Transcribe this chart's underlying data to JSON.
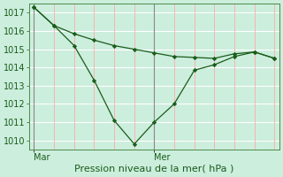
{
  "background_color": "#cceedd",
  "grid_color_h": "#ffffff",
  "grid_color_v": "#ffaaaa",
  "line_color": "#1a5c1a",
  "marker_color": "#1a5c1a",
  "xlabel": "Pression niveau de la mer( hPa )",
  "ylim": [
    1009.5,
    1017.5
  ],
  "yticks": [
    1010,
    1011,
    1012,
    1013,
    1014,
    1015,
    1016,
    1017
  ],
  "xtick_labels": [
    "Mar",
    "Mer"
  ],
  "vline_x": [
    0.0,
    0.5
  ],
  "line1_x": [
    0.0,
    0.083,
    0.167,
    0.25,
    0.333,
    0.417,
    0.5,
    0.583,
    0.667,
    0.75,
    0.833,
    0.917,
    1.0
  ],
  "line1_y": [
    1017.3,
    1016.3,
    1015.85,
    1015.5,
    1015.2,
    1015.0,
    1014.8,
    1014.6,
    1014.55,
    1014.5,
    1014.75,
    1014.85,
    1014.5
  ],
  "line2_x": [
    0.0,
    0.083,
    0.167,
    0.25,
    0.333,
    0.417,
    0.5,
    0.583,
    0.667,
    0.75,
    0.833,
    0.917,
    1.0
  ],
  "line2_y": [
    1017.3,
    1016.3,
    1015.2,
    1013.3,
    1011.1,
    1009.8,
    1011.0,
    1012.0,
    1013.85,
    1014.15,
    1014.6,
    1014.85,
    1014.5
  ],
  "title_fontsize": 8,
  "tick_fontsize": 7,
  "num_vert_grid": 12
}
